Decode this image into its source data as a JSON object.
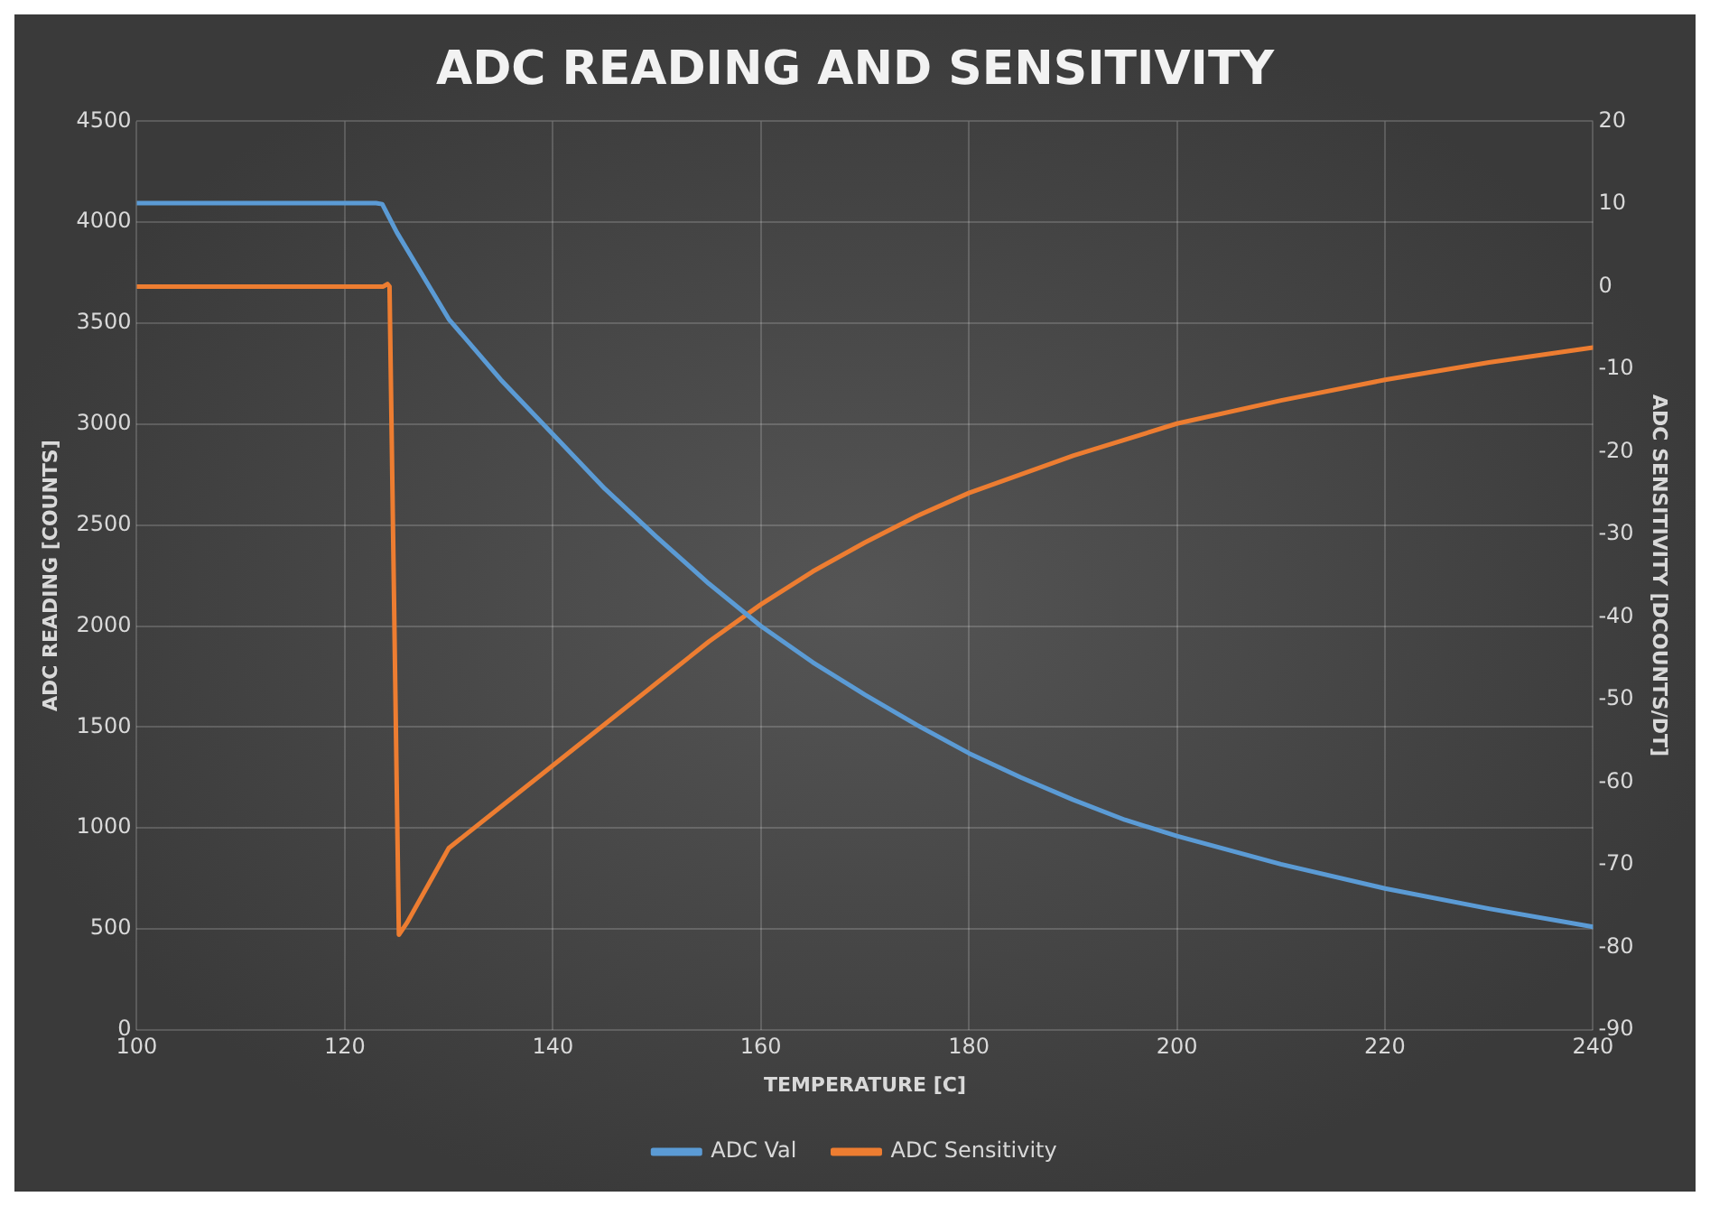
{
  "chart_data": {
    "type": "line",
    "title": "ADC READING AND SENSITIVITY",
    "xlabel": "TEMPERATURE [C]",
    "ylabel": "ADC READING [COUNTS]",
    "y2label": "ADC SENSITIVITY [DCOUNTS/DT]",
    "xlim": [
      100,
      240
    ],
    "xticks": [
      100,
      120,
      140,
      160,
      180,
      200,
      220,
      240
    ],
    "ylim": [
      0,
      4500
    ],
    "yticks": [
      0,
      500,
      1000,
      1500,
      2000,
      2500,
      3000,
      3500,
      4000,
      4500
    ],
    "y2lim": [
      -90,
      20
    ],
    "y2ticks": [
      -90,
      -80,
      -70,
      -60,
      -50,
      -40,
      -30,
      -20,
      -10,
      0,
      10,
      20
    ],
    "grid": true,
    "legend": "bottom",
    "marker": "none",
    "line_style": "solid",
    "series": [
      {
        "name": "ADC Val",
        "color": "#5b9bd5",
        "x": [
          100,
          123,
          123.6,
          125,
          130,
          135,
          140,
          145,
          150,
          155,
          160,
          165,
          170,
          175,
          180,
          185,
          190,
          195,
          200,
          210,
          220,
          230,
          240
        ],
        "values": [
          4095,
          4095,
          4090,
          3950,
          3520,
          3220,
          2950,
          2680,
          2440,
          2210,
          2000,
          1820,
          1660,
          1510,
          1370,
          1250,
          1140,
          1040,
          960,
          820,
          700,
          600,
          510
        ]
      },
      {
        "name": "ADC Sensitivity",
        "color": "#ed7d31",
        "axis": "y2",
        "x": [
          100,
          123.7,
          124.1,
          124.3,
          125.2,
          126,
          130,
          135,
          140,
          145,
          150,
          155,
          160,
          165,
          170,
          175,
          180,
          190,
          200,
          210,
          220,
          230,
          240
        ],
        "values": [
          0,
          0,
          0.3,
          0,
          -78.5,
          -77,
          -68,
          -63,
          -58,
          -53,
          -48,
          -43,
          -38.5,
          -34.5,
          -31,
          -27.8,
          -25,
          -20.5,
          -16.6,
          -13.8,
          -11.3,
          -9.2,
          -7.4
        ]
      }
    ]
  }
}
